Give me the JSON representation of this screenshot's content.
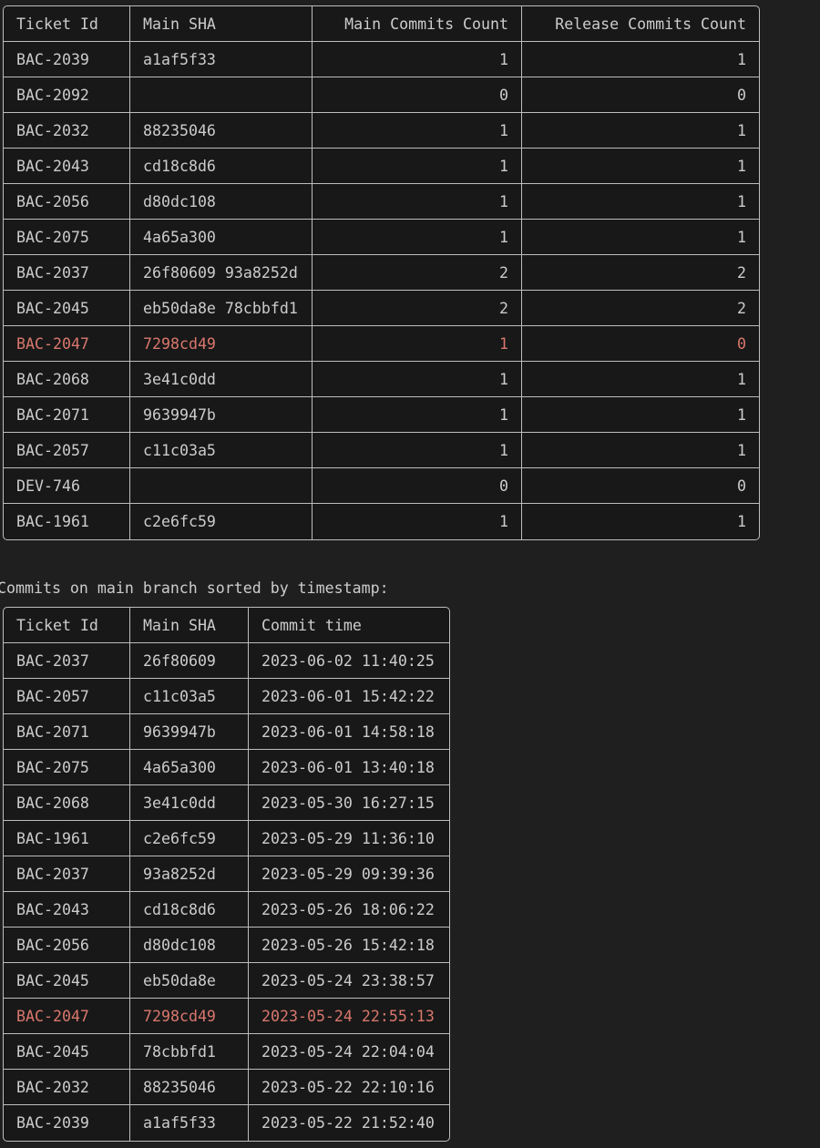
{
  "summary_table": {
    "headers": [
      "Ticket Id",
      "Main SHA",
      "Main Commits Count",
      "Release Commits Count"
    ],
    "rows": [
      [
        "BAC-2039",
        "a1af5f33",
        "1",
        "1"
      ],
      [
        "BAC-2092",
        "",
        "0",
        "0"
      ],
      [
        "BAC-2032",
        "88235046",
        "1",
        "1"
      ],
      [
        "BAC-2043",
        "cd18c8d6",
        "1",
        "1"
      ],
      [
        "BAC-2056",
        "d80dc108",
        "1",
        "1"
      ],
      [
        "BAC-2075",
        "4a65a300",
        "1",
        "1"
      ],
      [
        "BAC-2037",
        "26f80609 93a8252d",
        "2",
        "2"
      ],
      [
        "BAC-2045",
        "eb50da8e 78cbbfd1",
        "2",
        "2"
      ],
      [
        "BAC-2047",
        "7298cd49",
        "1",
        "0"
      ],
      [
        "BAC-2068",
        "3e41c0dd",
        "1",
        "1"
      ],
      [
        "BAC-2071",
        "9639947b",
        "1",
        "1"
      ],
      [
        "BAC-2057",
        "c11c03a5",
        "1",
        "1"
      ],
      [
        "DEV-746",
        "",
        "0",
        "0"
      ],
      [
        "BAC-1961",
        "c2e6fc59",
        "1",
        "1"
      ]
    ],
    "highlighted_row": 8
  },
  "caption": "Commits on main branch sorted by timestamp:",
  "commits_table": {
    "headers": [
      "Ticket Id",
      "Main SHA",
      "Commit time"
    ],
    "rows": [
      [
        "BAC-2037",
        "26f80609",
        "2023-06-02 11:40:25"
      ],
      [
        "BAC-2057",
        "c11c03a5",
        "2023-06-01 15:42:22"
      ],
      [
        "BAC-2071",
        "9639947b",
        "2023-06-01 14:58:18"
      ],
      [
        "BAC-2075",
        "4a65a300",
        "2023-06-01 13:40:18"
      ],
      [
        "BAC-2068",
        "3e41c0dd",
        "2023-05-30 16:27:15"
      ],
      [
        "BAC-1961",
        "c2e6fc59",
        "2023-05-29 11:36:10"
      ],
      [
        "BAC-2037",
        "93a8252d",
        "2023-05-29 09:39:36"
      ],
      [
        "BAC-2043",
        "cd18c8d6",
        "2023-05-26 18:06:22"
      ],
      [
        "BAC-2056",
        "d80dc108",
        "2023-05-26 15:42:18"
      ],
      [
        "BAC-2045",
        "eb50da8e",
        "2023-05-24 23:38:57"
      ],
      [
        "BAC-2047",
        "7298cd49",
        "2023-05-24 22:55:13"
      ],
      [
        "BAC-2045",
        "78cbbfd1",
        "2023-05-24 22:04:04"
      ],
      [
        "BAC-2032",
        "88235046",
        "2023-05-22 22:10:16"
      ],
      [
        "BAC-2039",
        "a1af5f33",
        "2023-05-22 21:52:40"
      ]
    ],
    "highlighted_row": 10
  },
  "colors": {
    "highlight": "#d9776d",
    "text": "#cccccc",
    "background": "#1f1f1f"
  }
}
